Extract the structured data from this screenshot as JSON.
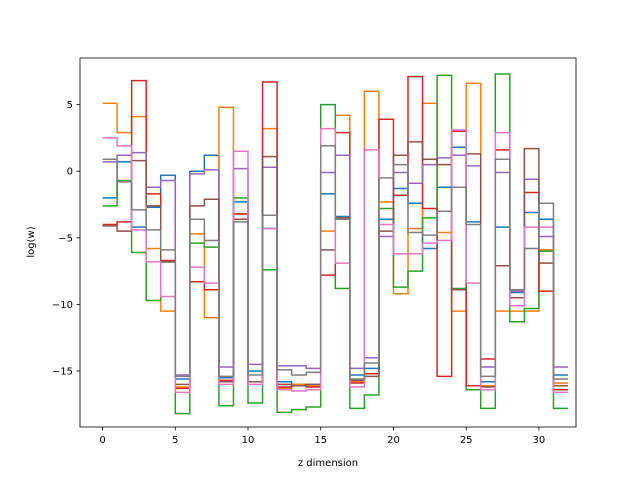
{
  "chart_data": {
    "type": "line",
    "style": "step-post",
    "xlabel": "z dimension",
    "ylabel": "log(w)",
    "xlim": [
      -1.55,
      32.55
    ],
    "ylim": [
      -19.2,
      8.5
    ],
    "x_ticks": [
      0,
      5,
      10,
      15,
      20,
      25,
      30
    ],
    "y_ticks": [
      -15,
      -10,
      -5,
      0,
      5
    ],
    "x": [
      0,
      1,
      2,
      3,
      4,
      5,
      6,
      7,
      8,
      9,
      10,
      11,
      12,
      13,
      14,
      15,
      16,
      17,
      18,
      19,
      20,
      21,
      22,
      23,
      24,
      25,
      26,
      27,
      28,
      29,
      30,
      31
    ],
    "series": [
      {
        "color": "#1f77b4",
        "values": [
          -2.0,
          0.7,
          -4.2,
          -2.7,
          -0.3,
          -15.6,
          0.0,
          1.2,
          -15.5,
          -2.3,
          -15.0,
          -4.3,
          -15.8,
          -16.0,
          -16.0,
          -1.7,
          -3.4,
          -15.3,
          -14.8,
          -3.6,
          -1.3,
          -2.4,
          -5.8,
          -1.2,
          1.8,
          -3.8,
          -15.8,
          -4.2,
          -9.1,
          -3.1,
          -3.6,
          -15.3
        ]
      },
      {
        "color": "#ff7f0e",
        "values": [
          5.1,
          2.9,
          4.1,
          -5.8,
          -10.5,
          -16.2,
          -4.7,
          -11.0,
          4.8,
          -3.2,
          -15.8,
          3.2,
          -16.3,
          -16.0,
          -16.1,
          -4.5,
          4.2,
          -15.8,
          6.0,
          -2.3,
          -9.2,
          -4.3,
          5.1,
          -4.6,
          -10.5,
          6.6,
          -16.1,
          -10.5,
          -10.5,
          -10.5,
          -5.9,
          -15.9
        ]
      },
      {
        "color": "#2ca02c",
        "values": [
          -2.6,
          -0.7,
          -6.1,
          -9.7,
          -6.8,
          -18.2,
          -5.4,
          -5.7,
          -17.6,
          -2.0,
          -17.4,
          -7.4,
          -18.1,
          -17.9,
          -17.7,
          5.0,
          -8.8,
          -17.8,
          -16.8,
          -2.8,
          -8.7,
          -7.5,
          -3.5,
          7.2,
          -8.8,
          -16.4,
          -17.8,
          7.3,
          -11.3,
          -10.3,
          -6.0,
          -17.8
        ]
      },
      {
        "color": "#d62728",
        "values": [
          -4.0,
          -3.8,
          6.8,
          -1.7,
          -6.7,
          -16.3,
          -8.3,
          -8.9,
          -15.7,
          -3.2,
          -15.8,
          6.7,
          -16.2,
          -16.1,
          -16.2,
          -7.8,
          2.9,
          -15.9,
          -15.2,
          3.9,
          -1.8,
          7.1,
          -2.8,
          -15.4,
          3.0,
          -16.1,
          -14.1,
          1.6,
          -8.9,
          -1.6,
          -9.0,
          -16.4
        ]
      },
      {
        "color": "#9467bd",
        "values": [
          0.7,
          1.2,
          1.4,
          -1.2,
          -0.7,
          -15.3,
          -0.2,
          0.1,
          -14.7,
          0.2,
          -14.5,
          0.3,
          -14.6,
          -14.6,
          -14.8,
          -0.1,
          1.2,
          -14.8,
          -14.0,
          -4.9,
          -0.1,
          -0.9,
          0.5,
          1.0,
          1.2,
          0.4,
          -14.7,
          -0.1,
          -9.0,
          -0.6,
          -4.9,
          -14.7
        ]
      },
      {
        "color": "#8c564b",
        "values": [
          -4.1,
          -4.5,
          0.8,
          -2.6,
          -6.8,
          -16.0,
          -2.6,
          -2.1,
          -15.8,
          -3.6,
          -15.8,
          1.1,
          -16.0,
          -16.1,
          -16.0,
          -5.9,
          -3.5,
          -15.7,
          -15.4,
          -4.5,
          1.2,
          2.2,
          0.9,
          0.5,
          -8.9,
          1.3,
          -16.2,
          -7.1,
          -9.5,
          1.7,
          -6.9,
          -16.1
        ]
      },
      {
        "color": "#e377c2",
        "values": [
          2.5,
          1.9,
          -4.4,
          -6.8,
          -9.4,
          -16.6,
          -7.2,
          -8.4,
          -16.0,
          1.5,
          -16.0,
          -4.3,
          -16.4,
          -16.5,
          -16.4,
          3.2,
          -6.9,
          -16.2,
          1.6,
          -4.0,
          -6.2,
          -6.2,
          -5.4,
          -5.2,
          3.1,
          -8.4,
          -16.4,
          2.9,
          -10.1,
          -4.2,
          -4.2,
          -16.6
        ]
      },
      {
        "color": "#7f7f7f",
        "values": [
          0.9,
          -0.8,
          -2.9,
          -4.4,
          -5.9,
          -15.4,
          -3.6,
          -5.2,
          -15.4,
          -3.8,
          -15.3,
          -3.3,
          -14.9,
          -15.3,
          -15.1,
          1.9,
          -3.6,
          -15.6,
          -14.4,
          -0.5,
          0.5,
          -4.6,
          -4.8,
          -3.0,
          -1.2,
          -4.0,
          -15.4,
          0.9,
          -8.9,
          -5.8,
          -2.4,
          -15.6
        ]
      }
    ]
  }
}
